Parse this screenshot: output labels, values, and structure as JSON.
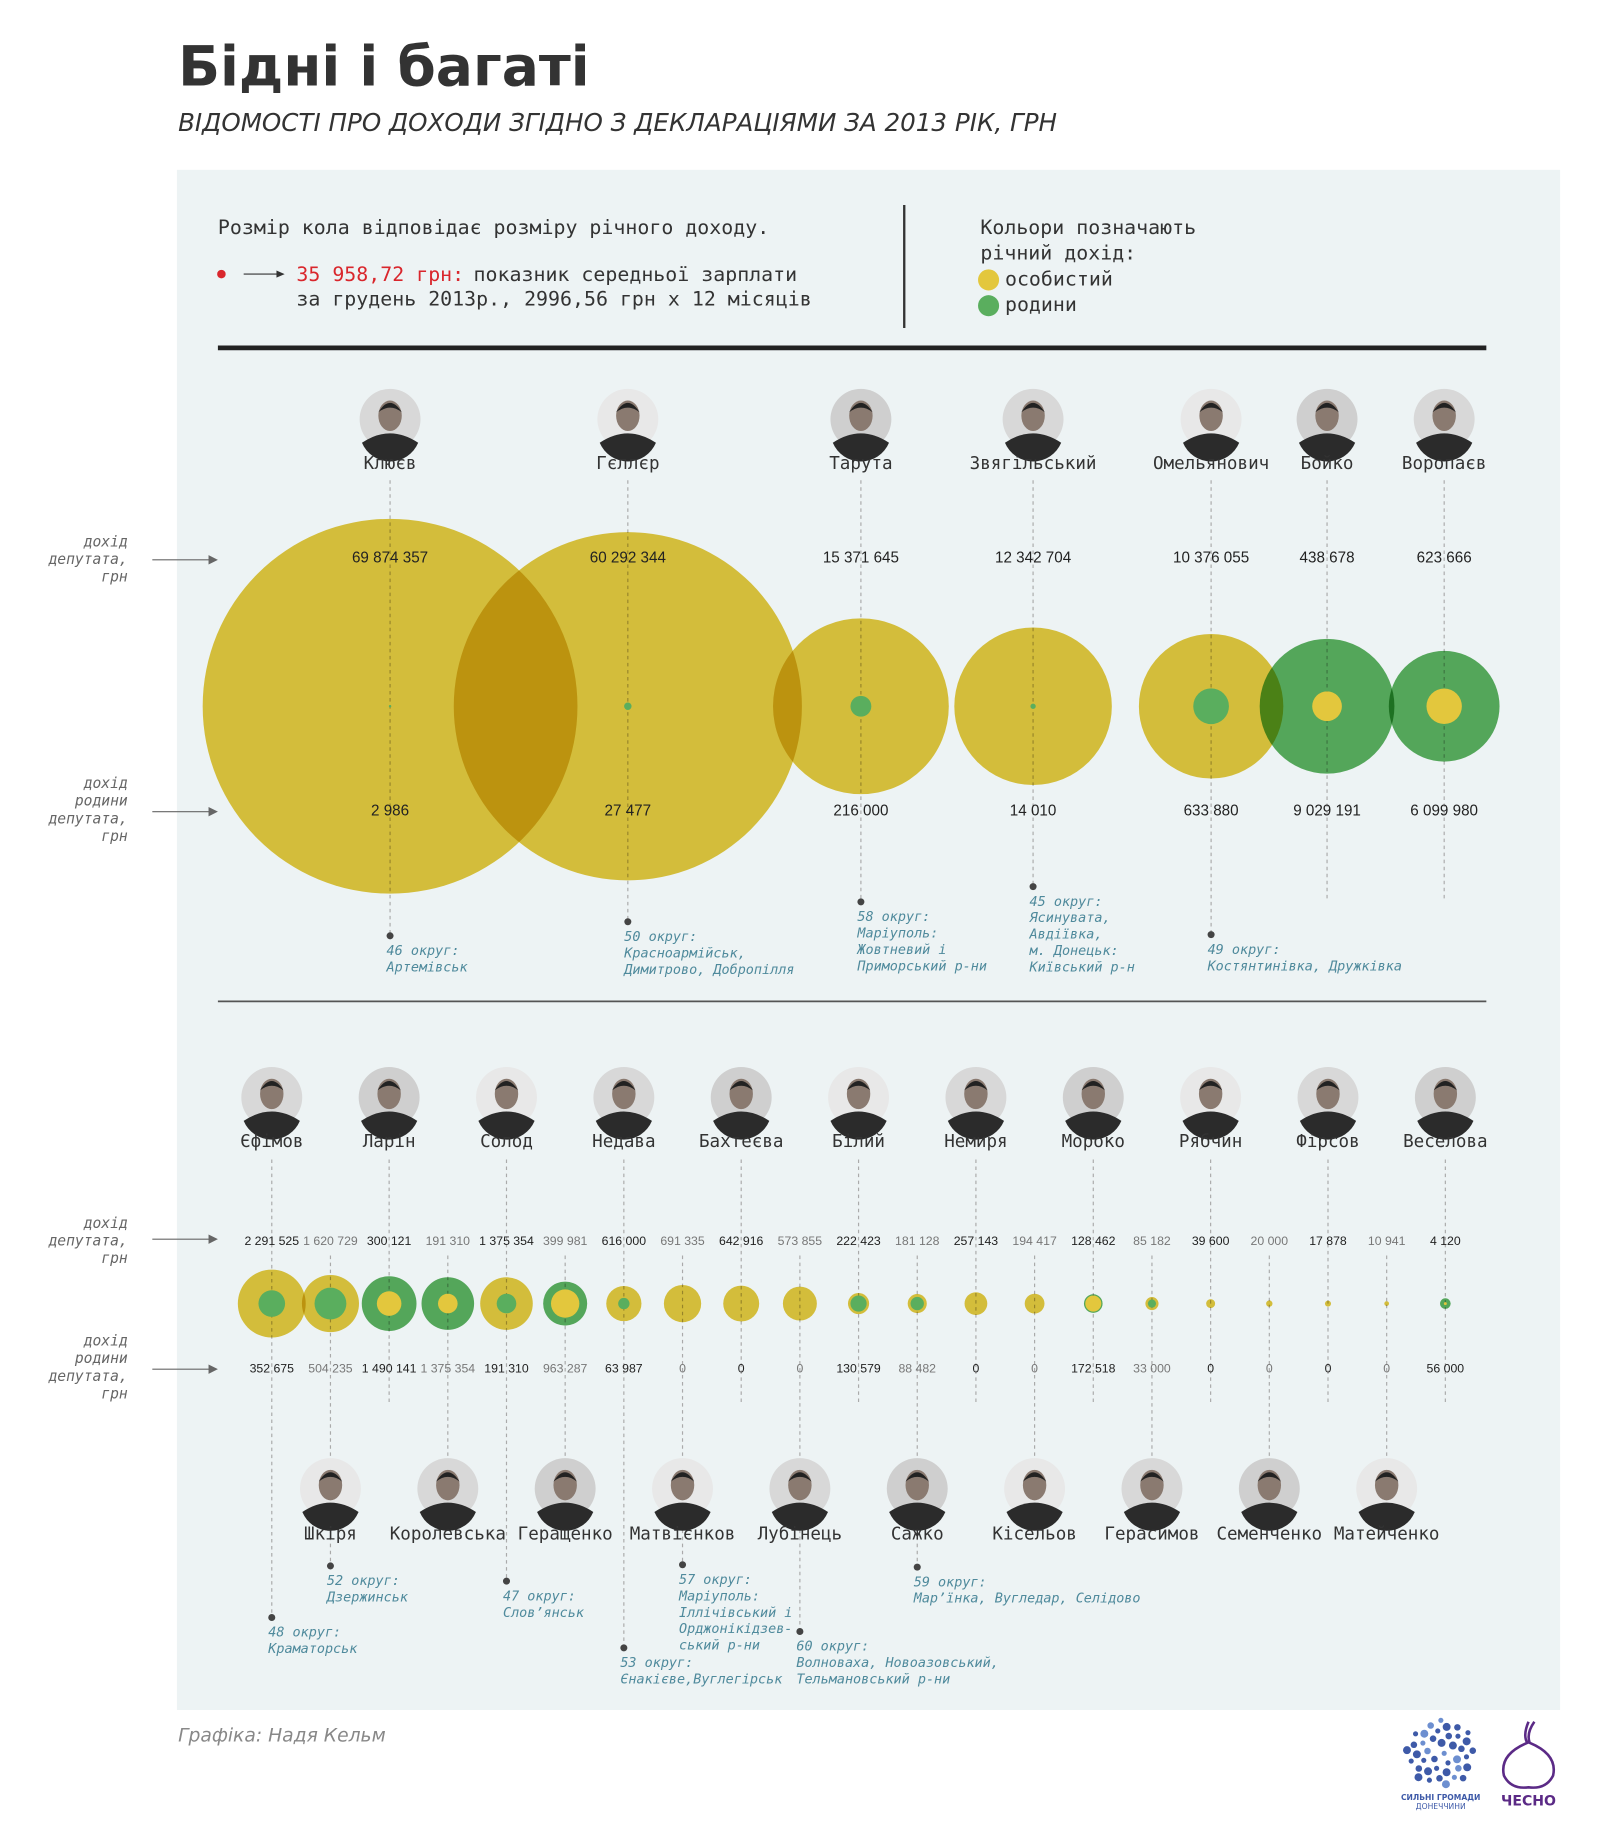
{
  "title": "Бідні і багаті",
  "subtitle": "ВІДОМОСТІ ПРО ДОХОДИ ЗГІДНО З ДЕКЛАРАЦІЯМИ ЗА 2013 РІК, ГРН",
  "legend": {
    "size_note": "Розмір кола відповідає розміру річного доходу.",
    "average_salary": 35958.72,
    "average_salary_label": "35 958,72 грн:",
    "average_note": [
      "показник середньої зарплати",
      "за грудень 2013р., 2996,56 грн х 12 місяців"
    ],
    "colors_note": [
      "Кольори позначають",
      "річний дохід:"
    ],
    "personal": "особистий",
    "family": "родини",
    "personal_color": "#e3c73d",
    "family_color": "#5aae5e"
  },
  "axis_labels": {
    "personal": [
      "дохід",
      "депутата,",
      "грн"
    ],
    "family": [
      "дохід",
      "родини",
      "депутата,",
      "грн"
    ]
  },
  "chart_data": [
    {
      "type": "bubble",
      "deputies": [
        {
          "name": "Клюєв",
          "personal": 69874357,
          "personal_label": "69 874 357",
          "family": 2986,
          "family_label": "2 986",
          "district": [
            "46 округ:",
            "Артемівськ"
          ]
        },
        {
          "name": "Гєллєр",
          "personal": 60292344,
          "personal_label": "60 292 344",
          "family": 27477,
          "family_label": "27 477",
          "district": [
            "50 округ:",
            "Красноармійськ,",
            "Димитрово, Добропілля"
          ]
        },
        {
          "name": "Тарута",
          "personal": 15371645,
          "personal_label": "15 371 645",
          "family": 216000,
          "family_label": "216 000",
          "district": [
            "58 округ:",
            "Маріуполь:",
            "Жовтневий і",
            "Приморський р-ни"
          ]
        },
        {
          "name": "Звягільський",
          "personal": 12342704,
          "personal_label": "12 342 704",
          "family": 14010,
          "family_label": "14 010",
          "district": [
            "45 округ:",
            "Ясинувата,",
            "Авдіївка,",
            "м. Донецьк:",
            "Київський р-н"
          ]
        },
        {
          "name": "Омельянович",
          "personal": 10376055,
          "personal_label": "10 376 055",
          "family": 633880,
          "family_label": "633 880",
          "district": [
            "49 округ:",
            "Костянтинівка, Дружківка"
          ]
        },
        {
          "name": "Бойко",
          "personal": 438678,
          "personal_label": "438 678",
          "family": 9029191,
          "family_label": "9 029 191"
        },
        {
          "name": "Воропаєв",
          "personal": 623666,
          "personal_label": "623 666",
          "family": 6099980,
          "family_label": "6 099 980"
        }
      ]
    },
    {
      "type": "bubble",
      "deputies": [
        {
          "name": "Єфімов",
          "personal": 2291525,
          "personal_label": "2 291 525",
          "family": 352675,
          "family_label": "352 675",
          "district": [
            "48 округ:",
            "Краматорськ"
          ]
        },
        {
          "name": "Шкіря",
          "personal": 1620729,
          "personal_label": "1 620 729",
          "family": 504235,
          "family_label": "504 235",
          "district": [
            "52 округ:",
            "Дзержинськ"
          ]
        },
        {
          "name": "Ларін",
          "personal": 300121,
          "personal_label": "300 121",
          "family": 1490141,
          "family_label": "1 490 141"
        },
        {
          "name": "Королевська",
          "personal": 191310,
          "personal_label": "191 310",
          "family": 1375354,
          "family_label": "1 375 354"
        },
        {
          "name": "Солод",
          "personal": 1375354,
          "personal_label": "1 375 354",
          "family": 191310,
          "family_label": "191 310",
          "district": [
            "47 округ:",
            "Слов’янськ"
          ]
        },
        {
          "name": "Геращенко",
          "personal": 399981,
          "personal_label": "399 981",
          "family": 963287,
          "family_label": "963 287"
        },
        {
          "name": "Недава",
          "personal": 616000,
          "personal_label": "616 000",
          "family": 63987,
          "family_label": "63 987",
          "district": [
            "53 округ:",
            "Єнакієве,Вуглегірськ"
          ]
        },
        {
          "name": "Матвієнков",
          "personal": 691335,
          "personal_label": "691 335",
          "family": 0,
          "district": [
            "57 округ:",
            "Маріуполь:",
            "Іллічівський і",
            "Орджонікідзев-",
            "ський р-ни"
          ]
        },
        {
          "name": "Бахтеєва",
          "personal": 642916,
          "personal_label": "642 916",
          "family": 0
        },
        {
          "name": "Лубінець",
          "personal": 573855,
          "personal_label": "573 855",
          "family": 0,
          "district": [
            "60 округ:",
            "Волноваха, Новоазовський,",
            "Тельмановський р-ни"
          ]
        },
        {
          "name": "Білий",
          "personal": 222423,
          "personal_label": "222 423",
          "family": 130579,
          "family_label": "130 579"
        },
        {
          "name": "Сажко",
          "personal": 181128,
          "personal_label": "181 128",
          "family": 88482,
          "family_label": "88 482",
          "district": [
            "59 округ:",
            "Мар’їнка, Вугледар, Селідово"
          ]
        },
        {
          "name": "Немиря",
          "personal": 257143,
          "personal_label": "257 143",
          "family": 0
        },
        {
          "name": "Кісельов",
          "personal": 194417,
          "personal_label": "194 417",
          "family": 0
        },
        {
          "name": "Мороко",
          "personal": 128462,
          "personal_label": "128 462",
          "family": 172518,
          "family_label": "172 518"
        },
        {
          "name": "Герасимов",
          "personal": 85182,
          "personal_label": "85 182",
          "family": 33000,
          "family_label": "33 000"
        },
        {
          "name": "Рябчин",
          "personal": 39600,
          "personal_label": "39 600",
          "family": 0
        },
        {
          "name": "Семенченко",
          "personal": 20000,
          "personal_label": "20 000",
          "family": 0
        },
        {
          "name": "Фірсов",
          "personal": 17878,
          "personal_label": "17 878",
          "family": 0
        },
        {
          "name": "Матейченко",
          "personal": 10941,
          "personal_label": "10 941",
          "family": 0
        },
        {
          "name": "Веселова",
          "personal": 4120,
          "personal_label": "4 120",
          "family": 56000,
          "family_label": "56 000"
        }
      ]
    }
  ],
  "credit": "Графіка: Надя Кельм",
  "logos": {
    "left": [
      "СИЛЬНІ ГРОМАДИ",
      "ДОНЕЧЧИНИ"
    ],
    "right": "ЧЕСНО"
  }
}
